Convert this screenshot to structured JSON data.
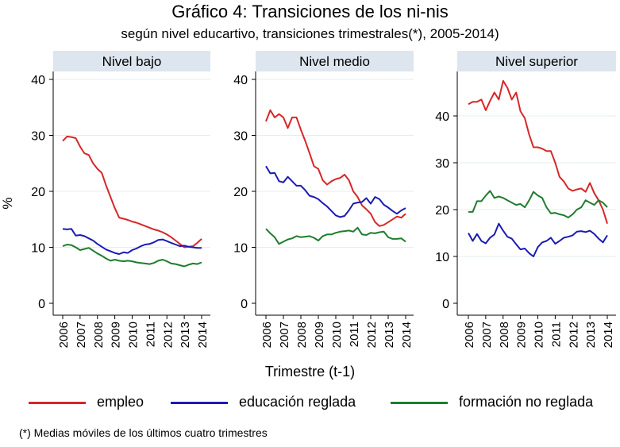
{
  "chart_data": {
    "type": "line",
    "title": "Gráfico 4: Transiciones de los ni-nis",
    "subtitle": "según nivel educartivo, transiciones trimestrales(*), 2005-2014)",
    "xlabel": "Trimestre (t-1)",
    "ylabel": "%",
    "footnote": "(*) Medias móviles de los últimos cuatro trimestres",
    "x_ticks": [
      "2006",
      "2007",
      "2008",
      "2009",
      "2010",
      "2011",
      "2012",
      "2013",
      "2014"
    ],
    "xlim": [
      2005.75,
      2014.25
    ],
    "legend_position": "bottom",
    "grid": true,
    "series_meta": [
      {
        "name": "empleo",
        "color": "#d62728"
      },
      {
        "name": "educación reglada",
        "color": "#1b1bb5"
      },
      {
        "name": "formación no reglada",
        "color": "#1e7d2e"
      }
    ],
    "panels": [
      {
        "label": "Nivel bajo",
        "ylim": [
          0,
          40
        ],
        "y_ticks": [
          0,
          10,
          20,
          30,
          40
        ],
        "x": [
          2006.0,
          2006.25,
          2006.5,
          2006.75,
          2007.0,
          2007.25,
          2007.5,
          2007.75,
          2008.0,
          2008.25,
          2008.5,
          2008.75,
          2009.0,
          2009.25,
          2009.5,
          2009.75,
          2010.0,
          2010.25,
          2010.5,
          2010.75,
          2011.0,
          2011.25,
          2011.5,
          2011.75,
          2012.0,
          2012.25,
          2012.5,
          2012.75,
          2013.0,
          2013.25,
          2013.5,
          2013.75,
          2014.0
        ],
        "series": [
          {
            "name": "empleo",
            "values": [
              29.0,
              29.8,
              29.7,
              29.5,
              28.0,
              26.8,
              26.5,
              25.0,
              24.0,
              23.3,
              21.0,
              19.0,
              17.0,
              15.3,
              15.1,
              14.9,
              14.6,
              14.4,
              14.1,
              13.8,
              13.5,
              13.2,
              13.0,
              12.7,
              12.3,
              11.8,
              11.2,
              10.6,
              10.0,
              10.1,
              10.2,
              10.8,
              11.5
            ]
          },
          {
            "name": "educación reglada",
            "values": [
              13.3,
              13.2,
              13.3,
              12.1,
              12.2,
              12.0,
              11.6,
              11.2,
              10.6,
              10.1,
              9.6,
              9.3,
              9.0,
              8.8,
              9.1,
              9.0,
              9.5,
              9.8,
              10.2,
              10.5,
              10.6,
              10.9,
              11.3,
              11.4,
              11.1,
              10.8,
              10.5,
              10.2,
              10.3,
              10.1,
              10.0,
              9.9,
              9.9
            ]
          },
          {
            "name": "formación no reglada",
            "values": [
              10.2,
              10.5,
              10.4,
              10.0,
              9.5,
              9.7,
              9.9,
              9.4,
              8.9,
              8.5,
              8.0,
              7.6,
              7.8,
              7.6,
              7.5,
              7.6,
              7.5,
              7.3,
              7.2,
              7.1,
              7.0,
              7.2,
              7.6,
              7.8,
              7.5,
              7.1,
              7.0,
              6.8,
              6.6,
              6.9,
              7.1,
              7.0,
              7.3
            ]
          }
        ]
      },
      {
        "label": "Nivel medio",
        "ylim": [
          0,
          40
        ],
        "y_ticks": [
          0,
          10,
          20,
          30,
          40
        ],
        "x": [
          2006.0,
          2006.25,
          2006.5,
          2006.75,
          2007.0,
          2007.25,
          2007.5,
          2007.75,
          2008.0,
          2008.25,
          2008.5,
          2008.75,
          2009.0,
          2009.25,
          2009.5,
          2009.75,
          2010.0,
          2010.25,
          2010.5,
          2010.75,
          2011.0,
          2011.25,
          2011.5,
          2011.75,
          2012.0,
          2012.25,
          2012.5,
          2012.75,
          2013.0,
          2013.25,
          2013.5,
          2013.75,
          2014.0
        ],
        "series": [
          {
            "name": "empleo",
            "values": [
              32.5,
              34.5,
              33.2,
              33.8,
              33.2,
              31.3,
              33.2,
              33.2,
              31.0,
              29.0,
              26.8,
              24.5,
              24.0,
              22.0,
              21.2,
              21.8,
              22.2,
              22.4,
              23.0,
              22.0,
              20.0,
              19.0,
              17.5,
              16.8,
              16.0,
              14.5,
              13.8,
              14.0,
              14.5,
              15.0,
              15.5,
              15.3,
              16.0
            ]
          },
          {
            "name": "educación reglada",
            "values": [
              24.5,
              23.2,
              23.3,
              21.8,
              21.6,
              22.6,
              21.8,
              21.0,
              21.0,
              20.2,
              19.2,
              19.0,
              18.6,
              17.9,
              17.3,
              16.5,
              15.7,
              15.4,
              15.6,
              16.6,
              17.8,
              18.0,
              18.1,
              18.8,
              17.8,
              19.0,
              18.6,
              17.6,
              17.1,
              16.5,
              16.0,
              16.6,
              17.0
            ]
          },
          {
            "name": "formación no reglada",
            "values": [
              13.3,
              12.5,
              11.8,
              10.6,
              11.0,
              11.4,
              11.6,
              12.0,
              11.8,
              11.9,
              12.0,
              11.7,
              11.2,
              12.0,
              12.3,
              12.3,
              12.6,
              12.8,
              12.9,
              13.0,
              12.8,
              13.5,
              12.3,
              12.2,
              12.6,
              12.5,
              12.7,
              12.8,
              11.8,
              11.5,
              11.5,
              11.6,
              11.0
            ]
          }
        ]
      },
      {
        "label": "Nivel superior",
        "ylim": [
          0,
          50
        ],
        "y_ticks": [
          0,
          10,
          20,
          30,
          40
        ],
        "x": [
          2006.0,
          2006.25,
          2006.5,
          2006.75,
          2007.0,
          2007.25,
          2007.5,
          2007.75,
          2008.0,
          2008.25,
          2008.5,
          2008.75,
          2009.0,
          2009.25,
          2009.5,
          2009.75,
          2010.0,
          2010.25,
          2010.5,
          2010.75,
          2011.0,
          2011.25,
          2011.5,
          2011.75,
          2012.0,
          2012.25,
          2012.5,
          2012.75,
          2013.0,
          2013.25,
          2013.5,
          2013.75,
          2014.0
        ],
        "series": [
          {
            "name": "empleo",
            "values": [
              42.5,
              43.0,
              43.0,
              43.5,
              41.2,
              43.2,
              45.0,
              43.5,
              47.5,
              46.0,
              43.5,
              45.0,
              41.0,
              39.5,
              36.0,
              33.3,
              33.3,
              33.0,
              32.5,
              32.5,
              30.0,
              27.0,
              26.0,
              24.5,
              24.0,
              24.3,
              24.5,
              23.8,
              25.7,
              23.5,
              22.0,
              20.0,
              17.0
            ]
          },
          {
            "name": "educación reglada",
            "values": [
              15.0,
              13.3,
              14.8,
              13.3,
              12.8,
              14.0,
              14.7,
              17.0,
              15.5,
              14.2,
              13.8,
              12.6,
              11.5,
              11.7,
              10.7,
              10.0,
              12.0,
              13.0,
              13.3,
              14.0,
              12.7,
              13.3,
              14.0,
              14.2,
              14.5,
              15.3,
              15.4,
              15.2,
              15.5,
              14.8,
              13.8,
              13.0,
              14.5
            ]
          },
          {
            "name": "formación no reglada",
            "values": [
              19.5,
              19.5,
              21.8,
              21.8,
              23.0,
              24.0,
              22.5,
              22.8,
              22.5,
              22.0,
              21.5,
              21.0,
              21.2,
              20.5,
              22.0,
              23.8,
              23.0,
              22.5,
              20.5,
              19.2,
              19.3,
              19.0,
              18.8,
              18.3,
              19.0,
              20.0,
              20.5,
              22.0,
              21.5,
              21.0,
              22.0,
              21.5,
              20.5
            ]
          }
        ]
      }
    ]
  }
}
